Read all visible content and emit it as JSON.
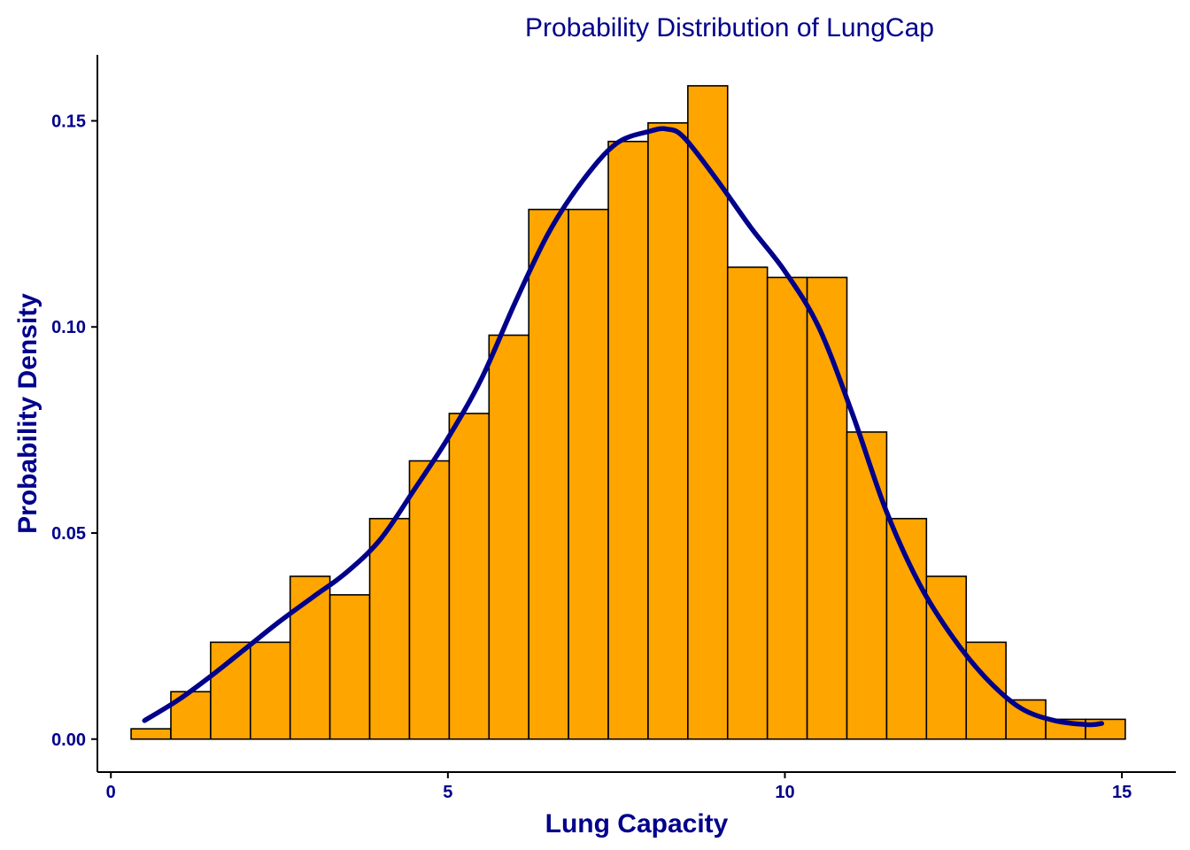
{
  "chart_data": {
    "type": "bar",
    "title": "Probability Distribution of LungCap",
    "xlabel": "Lung Capacity",
    "ylabel": "Probability Density",
    "xlim": [
      -0.2,
      15.8
    ],
    "ylim": [
      -0.008,
      0.166
    ],
    "x_ticks": [
      {
        "value": 0,
        "label": "0"
      },
      {
        "value": 5,
        "label": "5"
      },
      {
        "value": 10,
        "label": "10"
      },
      {
        "value": 15,
        "label": "15"
      }
    ],
    "y_ticks": [
      {
        "value": 0.0,
        "label": "0.00"
      },
      {
        "value": 0.05,
        "label": "0.05"
      },
      {
        "value": 0.1,
        "label": "0.10"
      },
      {
        "value": 0.15,
        "label": "0.15"
      }
    ],
    "grid": false,
    "histogram": {
      "bin_edges": [
        0.3,
        0.89,
        1.48,
        2.07,
        2.66,
        3.25,
        3.84,
        4.43,
        5.02,
        5.61,
        6.2,
        6.79,
        7.38,
        7.97,
        8.56,
        9.15,
        9.74,
        10.33,
        10.92,
        11.51,
        12.1,
        12.69,
        13.28,
        13.87,
        14.46,
        15.05
      ],
      "densities": [
        0.0025,
        0.0115,
        0.0235,
        0.0235,
        0.0395,
        0.035,
        0.0535,
        0.0675,
        0.079,
        0.098,
        0.1285,
        0.1285,
        0.145,
        0.1495,
        0.1585,
        0.1145,
        0.112,
        0.112,
        0.0745,
        0.0535,
        0.0395,
        0.0235,
        0.0095,
        0.0048,
        0.0048
      ],
      "fill": "#FFA500",
      "outline": "#000000"
    },
    "density_curve": {
      "x": [
        0.5,
        1.0,
        1.5,
        2.0,
        2.5,
        3.0,
        3.5,
        4.0,
        4.5,
        5.0,
        5.5,
        6.0,
        6.5,
        7.0,
        7.5,
        8.0,
        8.25,
        8.5,
        9.0,
        9.5,
        10.0,
        10.5,
        11.0,
        11.5,
        12.0,
        12.5,
        13.0,
        13.5,
        14.0,
        14.5,
        14.7
      ],
      "y": [
        0.0045,
        0.0095,
        0.0155,
        0.022,
        0.0285,
        0.0345,
        0.0405,
        0.0485,
        0.0605,
        0.073,
        0.0875,
        0.106,
        0.123,
        0.1355,
        0.1445,
        0.1475,
        0.148,
        0.146,
        0.1355,
        0.124,
        0.1135,
        0.1,
        0.079,
        0.0555,
        0.0375,
        0.0245,
        0.0145,
        0.0075,
        0.0045,
        0.0035,
        0.0038
      ],
      "color": "#00008B"
    }
  }
}
